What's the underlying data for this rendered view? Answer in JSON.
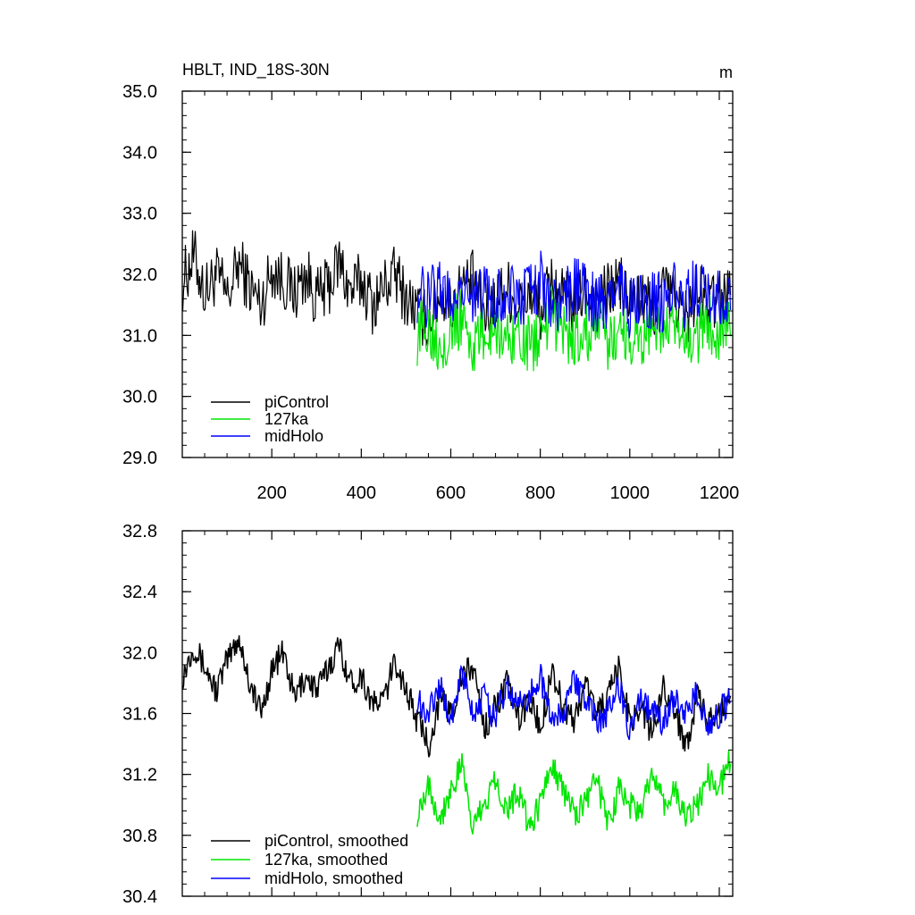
{
  "chart_data": [
    {
      "type": "line",
      "title": "HBLT, IND_18S-30N",
      "units": "m",
      "xlim": [
        0,
        1230
      ],
      "ylim": [
        29.0,
        35.0
      ],
      "xticks": [
        200,
        400,
        600,
        800,
        1000,
        1200
      ],
      "xtick_labels": [
        "200",
        "400",
        "600",
        "800",
        "1000",
        "1200"
      ],
      "yticks": [
        29.0,
        30.0,
        31.0,
        32.0,
        33.0,
        34.0,
        35.0
      ],
      "ytick_labels": [
        "29.0",
        "30.0",
        "31.0",
        "32.0",
        "33.0",
        "34.0",
        "35.0"
      ],
      "legend_position": "bottom-left",
      "series": [
        {
          "name": "piControl",
          "color": "#000000",
          "x_start": 1,
          "x_end": 1225,
          "x_step": 25,
          "values": [
            31.9,
            32.3,
            31.7,
            32.0,
            31.6,
            32.2,
            31.8,
            31.5,
            32.1,
            31.9,
            31.7,
            32.0,
            31.6,
            31.8,
            32.2,
            31.7,
            31.9,
            31.5,
            31.8,
            32.0,
            31.6,
            31.4,
            31.2,
            31.7,
            31.5,
            31.8,
            31.9,
            31.3,
            31.6,
            31.8,
            31.5,
            31.7,
            31.4,
            31.9,
            31.6,
            31.5,
            31.8,
            31.6,
            31.7,
            31.9,
            31.5,
            31.6,
            31.4,
            31.8,
            31.6,
            31.3,
            31.7,
            31.5,
            31.6,
            31.8
          ]
        },
        {
          "name": "127ka",
          "color": "#00e600",
          "x_start": 525,
          "x_end": 1225,
          "x_step": 25,
          "values": [
            31.0,
            31.2,
            30.9,
            31.1,
            31.3,
            30.8,
            31.0,
            31.2,
            30.9,
            31.1,
            30.8,
            31.0,
            31.3,
            31.1,
            30.9,
            31.0,
            31.2,
            30.8,
            31.1,
            31.0,
            30.9,
            31.2,
            31.0,
            31.1,
            30.8,
            31.0,
            31.2,
            31.1,
            31.3
          ]
        },
        {
          "name": "midHolo",
          "color": "#0000ff",
          "x_start": 525,
          "x_end": 1225,
          "x_step": 25,
          "values": [
            31.7,
            31.6,
            31.8,
            31.5,
            31.9,
            31.6,
            31.7,
            31.5,
            31.8,
            31.6,
            31.7,
            31.9,
            31.5,
            31.6,
            31.8,
            31.7,
            31.5,
            31.6,
            31.8,
            31.4,
            31.7,
            31.6,
            31.5,
            31.7,
            31.6,
            31.8,
            31.5,
            31.6,
            31.7
          ]
        }
      ]
    },
    {
      "type": "line",
      "xlim": [
        0,
        1230
      ],
      "ylim": [
        30.4,
        32.8
      ],
      "xticks": [
        200,
        400,
        600,
        800,
        1000,
        1200
      ],
      "yticks": [
        30.4,
        30.8,
        31.2,
        31.6,
        32.0,
        32.4,
        32.8
      ],
      "ytick_labels": [
        "30.4",
        "30.8",
        "31.2",
        "31.6",
        "32.0",
        "32.4",
        "32.8"
      ],
      "legend_position": "bottom-left",
      "series": [
        {
          "name": "piControl, smoothed",
          "color": "#000000",
          "x_start": 1,
          "x_end": 1225,
          "x_step": 25,
          "values": [
            31.85,
            32.05,
            31.9,
            31.75,
            31.95,
            32.1,
            31.8,
            31.6,
            31.9,
            32.0,
            31.7,
            31.85,
            31.75,
            31.9,
            32.05,
            31.8,
            31.85,
            31.65,
            31.7,
            31.95,
            31.75,
            31.55,
            31.4,
            31.7,
            31.6,
            31.85,
            31.9,
            31.5,
            31.65,
            31.8,
            31.55,
            31.7,
            31.5,
            31.9,
            31.65,
            31.55,
            31.8,
            31.6,
            31.7,
            31.9,
            31.55,
            31.65,
            31.45,
            31.8,
            31.6,
            31.4,
            31.7,
            31.55,
            31.6,
            31.75
          ]
        },
        {
          "name": "127ka, smoothed",
          "color": "#00e600",
          "x_start": 525,
          "x_end": 1225,
          "x_step": 25,
          "values": [
            30.95,
            31.15,
            30.9,
            31.1,
            31.25,
            30.85,
            31.0,
            31.2,
            30.95,
            31.1,
            30.85,
            31.0,
            31.3,
            31.1,
            30.95,
            31.0,
            31.2,
            30.85,
            31.1,
            31.0,
            30.95,
            31.2,
            31.0,
            31.1,
            30.9,
            31.0,
            31.2,
            31.1,
            31.3
          ]
        },
        {
          "name": "midHolo, smoothed",
          "color": "#0000ff",
          "x_start": 525,
          "x_end": 1225,
          "x_step": 25,
          "values": [
            31.7,
            31.6,
            31.8,
            31.55,
            31.85,
            31.6,
            31.7,
            31.55,
            31.8,
            31.65,
            31.7,
            31.85,
            31.55,
            31.6,
            31.8,
            31.7,
            31.55,
            31.6,
            31.8,
            31.45,
            31.7,
            31.6,
            31.55,
            31.7,
            31.6,
            31.75,
            31.5,
            31.6,
            31.7
          ]
        }
      ]
    }
  ]
}
